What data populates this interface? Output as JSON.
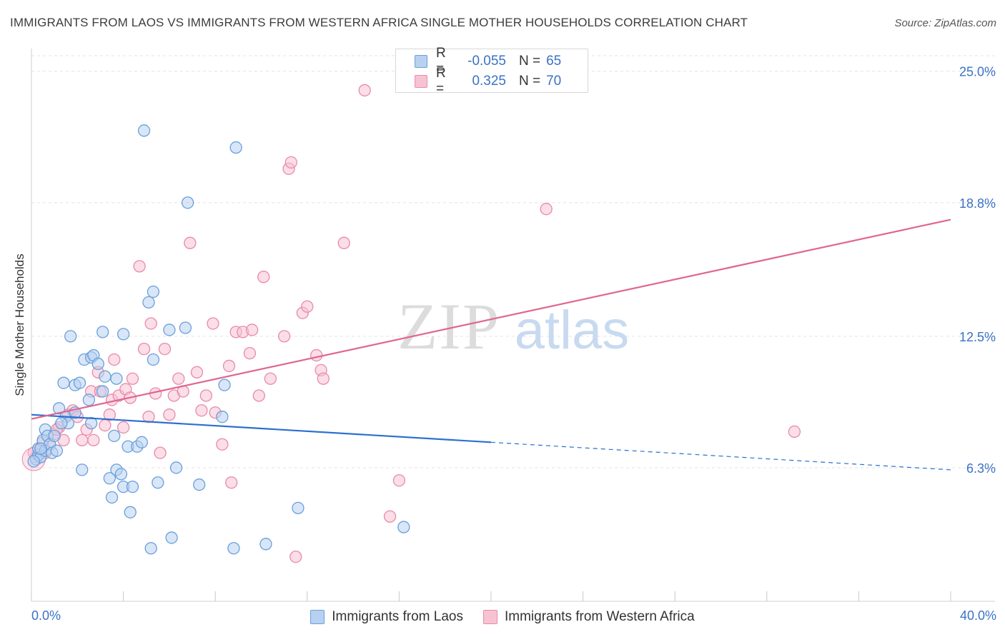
{
  "title": "IMMIGRANTS FROM LAOS VS IMMIGRANTS FROM WESTERN AFRICA SINGLE MOTHER HOUSEHOLDS CORRELATION CHART",
  "source": "Source: ZipAtlas.com",
  "watermark": {
    "zip": "ZIP",
    "atlas": "atlas"
  },
  "legend": {
    "series1": {
      "r_label": "R =",
      "r_value": "-0.055",
      "n_label": "N =",
      "n_value": "65"
    },
    "series2": {
      "r_label": "R =",
      "r_value": "0.325",
      "n_label": "N =",
      "n_value": "70"
    }
  },
  "bottom_legend": {
    "series1": "Immigrants from Laos",
    "series2": "Immigrants from Western Africa"
  },
  "colors": {
    "blue_fill": "#b8d1f0",
    "blue_stroke": "#6a9fdc",
    "blue_line": "#2c6fd0",
    "pink_fill": "#f7c3d3",
    "pink_stroke": "#e88aaa",
    "pink_line": "#e0668e",
    "axis_label": "#3a72c4",
    "grid": "#e3e3e3"
  },
  "chart_data": {
    "type": "scatter",
    "title": "IMMIGRANTS FROM LAOS VS IMMIGRANTS FROM WESTERN AFRICA SINGLE MOTHER HOUSEHOLDS CORRELATION CHART",
    "xlabel": "",
    "ylabel": "Single Mother Households",
    "xlim": [
      0,
      40
    ],
    "ylim": [
      0,
      26
    ],
    "x_tick_labels": [
      "0.0%",
      "40.0%"
    ],
    "y_ticks": [
      6.3,
      12.5,
      18.8,
      25.0
    ],
    "y_tick_labels": [
      "6.3%",
      "12.5%",
      "18.8%",
      "25.0%"
    ],
    "series": [
      {
        "name": "Immigrants from Laos",
        "r": -0.055,
        "n": 65,
        "trend": {
          "x0": 0,
          "y0": 8.8,
          "x1": 20,
          "y1": 7.5,
          "x_dash_end": 40,
          "y_dash_end": 6.2
        },
        "points": [
          [
            0.2,
            6.7
          ],
          [
            0.3,
            6.9
          ],
          [
            0.3,
            7.2
          ],
          [
            0.4,
            6.8
          ],
          [
            0.5,
            7.6
          ],
          [
            0.6,
            7.1
          ],
          [
            0.6,
            8.1
          ],
          [
            0.7,
            7.8
          ],
          [
            0.8,
            7.4
          ],
          [
            0.9,
            7.0
          ],
          [
            1.0,
            7.8
          ],
          [
            1.1,
            7.1
          ],
          [
            1.2,
            9.1
          ],
          [
            1.4,
            10.3
          ],
          [
            1.5,
            8.7
          ],
          [
            1.6,
            8.4
          ],
          [
            1.7,
            12.5
          ],
          [
            1.9,
            8.9
          ],
          [
            1.9,
            10.2
          ],
          [
            2.1,
            10.3
          ],
          [
            2.2,
            6.2
          ],
          [
            2.3,
            11.4
          ],
          [
            2.5,
            9.5
          ],
          [
            2.6,
            11.5
          ],
          [
            2.6,
            8.4
          ],
          [
            2.7,
            11.6
          ],
          [
            2.9,
            11.2
          ],
          [
            3.1,
            9.9
          ],
          [
            3.1,
            12.7
          ],
          [
            3.2,
            10.6
          ],
          [
            3.4,
            5.8
          ],
          [
            3.5,
            4.9
          ],
          [
            3.6,
            7.8
          ],
          [
            3.7,
            10.5
          ],
          [
            3.7,
            6.2
          ],
          [
            3.9,
            6.0
          ],
          [
            4.0,
            5.4
          ],
          [
            4.0,
            12.6
          ],
          [
            4.2,
            7.3
          ],
          [
            4.3,
            4.2
          ],
          [
            4.4,
            5.4
          ],
          [
            4.6,
            7.3
          ],
          [
            4.8,
            7.5
          ],
          [
            4.9,
            22.2
          ],
          [
            5.1,
            14.1
          ],
          [
            5.2,
            2.5
          ],
          [
            5.3,
            11.4
          ],
          [
            5.3,
            14.6
          ],
          [
            5.5,
            5.6
          ],
          [
            6.0,
            12.8
          ],
          [
            6.1,
            3.0
          ],
          [
            6.3,
            6.3
          ],
          [
            6.7,
            12.9
          ],
          [
            6.8,
            18.8
          ],
          [
            7.3,
            5.5
          ],
          [
            8.3,
            8.7
          ],
          [
            8.4,
            10.2
          ],
          [
            8.8,
            2.5
          ],
          [
            8.9,
            21.4
          ],
          [
            10.2,
            2.7
          ],
          [
            11.6,
            4.4
          ],
          [
            16.2,
            3.5
          ],
          [
            0.1,
            6.6
          ],
          [
            0.4,
            7.2
          ],
          [
            1.3,
            8.4
          ]
        ]
      },
      {
        "name": "Immigrants from Western Africa",
        "r": 0.325,
        "n": 70,
        "trend": {
          "x0": 0,
          "y0": 8.6,
          "x1": 40,
          "y1": 18.0
        },
        "points": [
          [
            0.1,
            7.0
          ],
          [
            0.3,
            7.2
          ],
          [
            0.5,
            7.5
          ],
          [
            0.6,
            7.0
          ],
          [
            0.8,
            7.4
          ],
          [
            1.0,
            7.9
          ],
          [
            1.2,
            8.2
          ],
          [
            1.4,
            7.6
          ],
          [
            1.6,
            8.8
          ],
          [
            1.8,
            9.0
          ],
          [
            2.0,
            8.7
          ],
          [
            2.2,
            7.6
          ],
          [
            2.4,
            8.1
          ],
          [
            2.6,
            9.9
          ],
          [
            2.7,
            7.6
          ],
          [
            2.9,
            10.8
          ],
          [
            3.0,
            9.9
          ],
          [
            3.2,
            8.3
          ],
          [
            3.4,
            8.8
          ],
          [
            3.5,
            9.5
          ],
          [
            3.6,
            11.4
          ],
          [
            3.8,
            9.7
          ],
          [
            4.0,
            8.2
          ],
          [
            4.1,
            10.0
          ],
          [
            4.3,
            9.6
          ],
          [
            4.4,
            10.5
          ],
          [
            4.7,
            15.8
          ],
          [
            4.9,
            11.9
          ],
          [
            5.1,
            8.7
          ],
          [
            5.2,
            13.1
          ],
          [
            5.4,
            9.8
          ],
          [
            5.6,
            7.0
          ],
          [
            5.8,
            11.9
          ],
          [
            6.0,
            8.8
          ],
          [
            6.2,
            9.7
          ],
          [
            6.4,
            10.5
          ],
          [
            6.6,
            9.9
          ],
          [
            6.9,
            16.9
          ],
          [
            7.2,
            10.8
          ],
          [
            7.4,
            9.0
          ],
          [
            7.6,
            9.7
          ],
          [
            7.9,
            13.1
          ],
          [
            8.0,
            8.9
          ],
          [
            8.3,
            7.4
          ],
          [
            8.6,
            11.1
          ],
          [
            8.7,
            5.6
          ],
          [
            8.9,
            12.7
          ],
          [
            9.2,
            12.7
          ],
          [
            9.5,
            11.7
          ],
          [
            9.6,
            12.8
          ],
          [
            9.9,
            9.7
          ],
          [
            10.1,
            15.3
          ],
          [
            10.4,
            10.5
          ],
          [
            11.0,
            12.5
          ],
          [
            11.2,
            20.4
          ],
          [
            11.3,
            20.7
          ],
          [
            11.5,
            2.1
          ],
          [
            11.8,
            13.6
          ],
          [
            12.0,
            13.9
          ],
          [
            12.4,
            11.6
          ],
          [
            12.6,
            10.9
          ],
          [
            12.7,
            10.5
          ],
          [
            13.6,
            16.9
          ],
          [
            14.5,
            24.1
          ],
          [
            15.6,
            4.0
          ],
          [
            16.0,
            5.7
          ],
          [
            22.4,
            18.5
          ],
          [
            33.2,
            8.0
          ],
          [
            0.2,
            6.8
          ],
          [
            1.1,
            8.1
          ]
        ]
      }
    ]
  }
}
